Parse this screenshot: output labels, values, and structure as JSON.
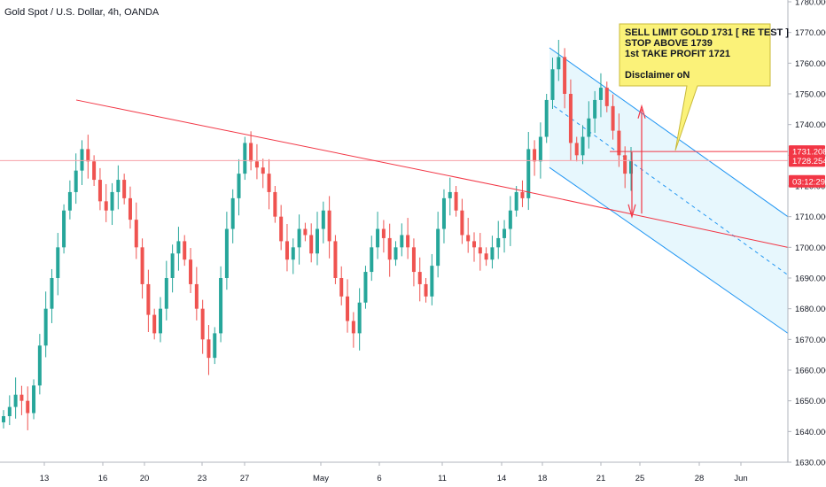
{
  "header": {
    "title": "Gold Spot / U.S. Dollar, 4h, OANDA"
  },
  "annotation": {
    "lines": [
      "SELL LIMIT GOLD 1731 [ RE TEST ]",
      "STOP ABOVE 1739",
      "1st TAKE PROFIT 1721",
      "",
      "Disclaimer oN"
    ],
    "bg_color": "#fbf279"
  },
  "price_tags": [
    {
      "label": "1731.208",
      "value": 1731.208,
      "color": "#f23645"
    },
    {
      "label": "1728.254",
      "value": 1728.254,
      "color": "#f23645"
    },
    {
      "label": "03:12:29",
      "value": 1721.5,
      "color": "#f23645"
    }
  ],
  "colors": {
    "up": "#26a69a",
    "down": "#ef5350",
    "trendline": "#f23645",
    "channel": "#2196f3",
    "channel_fill": "#e3f6fd"
  },
  "chart_data": {
    "type": "candlestick",
    "title": "Gold Spot / U.S. Dollar, 4h, OANDA",
    "ylim": [
      1630,
      1780
    ],
    "y_ticks": [
      1780,
      1770,
      1760,
      1750,
      1740,
      1730,
      1720,
      1710,
      1700,
      1690,
      1680,
      1670,
      1660,
      1650,
      1640,
      1630
    ],
    "y_tick_labels": [
      "1780.000",
      "1770.000",
      "1760.000",
      "1750.000",
      "1740.000",
      "1730.000",
      "1720.000",
      "1710.000",
      "1700.000",
      "1690.000",
      "1680.000",
      "1670.000",
      "1660.000",
      "1650.000",
      "1640.000",
      "1630.000"
    ],
    "x_tick_labels": [
      "13",
      "16",
      "20",
      "23",
      "27",
      "May",
      "6",
      "11",
      "14",
      "18",
      "21",
      "25",
      "28",
      "Jun"
    ],
    "last_price": 1728.254,
    "horizontal_line": 1728.254,
    "series_close_path": [
      1645,
      1648,
      1652,
      1650,
      1646,
      1655,
      1668,
      1680,
      1690,
      1700,
      1712,
      1718,
      1725,
      1732,
      1728,
      1722,
      1715,
      1712,
      1718,
      1722,
      1716,
      1709,
      1700,
      1688,
      1678,
      1672,
      1680,
      1690,
      1698,
      1702,
      1696,
      1688,
      1680,
      1670,
      1664,
      1672,
      1690,
      1706,
      1716,
      1724,
      1734,
      1728,
      1726,
      1724,
      1718,
      1710,
      1702,
      1696,
      1700,
      1706,
      1704,
      1698,
      1706,
      1712,
      1702,
      1690,
      1684,
      1676,
      1672,
      1682,
      1692,
      1700,
      1706,
      1703,
      1696,
      1700,
      1704,
      1700,
      1692,
      1688,
      1684,
      1694,
      1706,
      1716,
      1718,
      1712,
      1704,
      1702,
      1700,
      1698,
      1696,
      1700,
      1703,
      1706,
      1712,
      1718,
      1716,
      1732,
      1728,
      1736,
      1748,
      1758,
      1762,
      1750,
      1734,
      1730,
      1736,
      1742,
      1748,
      1752,
      1746,
      1738,
      1730,
      1724,
      1728
    ]
  }
}
